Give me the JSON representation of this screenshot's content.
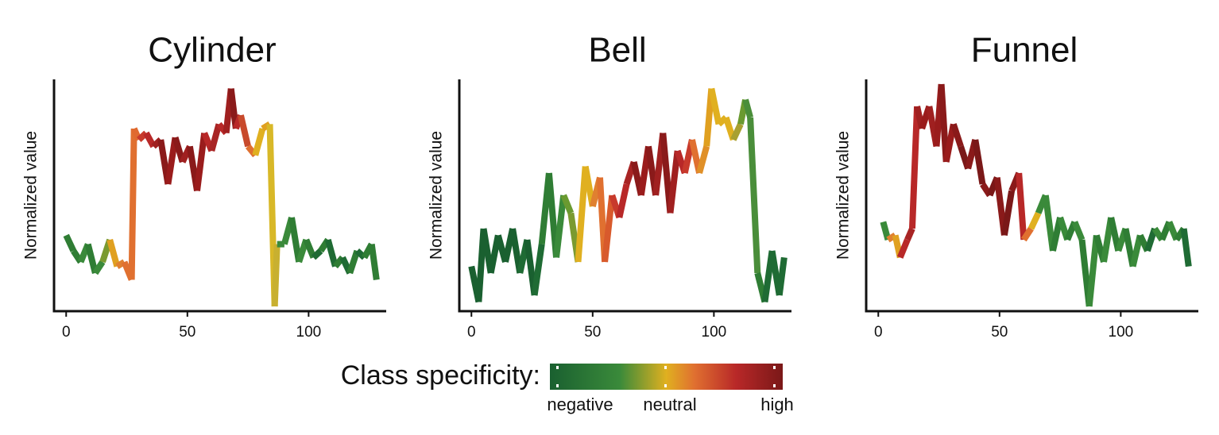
{
  "chart_data": [
    {
      "type": "line",
      "title": "Cylinder",
      "ylabel": "Normalized value",
      "xlim": [
        -5,
        132
      ],
      "ylim": [
        0,
        1
      ],
      "xticks": [
        0,
        50,
        100
      ],
      "series": [
        {
          "x": [
            0,
            3,
            6,
            9,
            12,
            15,
            18,
            21,
            24,
            27,
            28,
            30,
            33,
            36,
            39,
            42,
            45,
            48,
            51,
            54,
            57,
            60,
            63,
            66,
            68,
            70,
            72,
            75,
            78,
            81,
            84,
            86,
            87,
            90,
            93,
            96,
            99,
            102,
            105,
            108,
            111,
            114,
            117,
            120,
            123,
            126,
            128
          ],
          "values": [
            0.32,
            0.25,
            0.2,
            0.28,
            0.15,
            0.2,
            0.3,
            0.18,
            0.2,
            0.12,
            0.8,
            0.75,
            0.78,
            0.72,
            0.75,
            0.55,
            0.76,
            0.65,
            0.72,
            0.52,
            0.78,
            0.7,
            0.82,
            0.78,
            0.98,
            0.8,
            0.86,
            0.72,
            0.68,
            0.8,
            0.82,
            0.0,
            0.28,
            0.28,
            0.4,
            0.2,
            0.3,
            0.22,
            0.25,
            0.3,
            0.18,
            0.22,
            0.15,
            0.25,
            0.22,
            0.28,
            0.12
          ],
          "colors": [
            "#2f7d34",
            "#2f7d34",
            "#3a8a3a",
            "#2f7d34",
            "#3a8a3a",
            "#7a9a30",
            "#e0a020",
            "#e08030",
            "#e07030",
            "#e07030",
            "#e06a30",
            "#c83a2c",
            "#b82828",
            "#a02020",
            "#8a1a1a",
            "#9a1c1c",
            "#8a1a1a",
            "#a02020",
            "#8a1a1a",
            "#9a1c1c",
            "#b82828",
            "#a82424",
            "#b82828",
            "#a02020",
            "#8a1a1a",
            "#b82828",
            "#c84a2c",
            "#e07030",
            "#e0b020",
            "#e0a020",
            "#d8b828",
            "#c8b030",
            "#3a8a3a",
            "#3a8a3a",
            "#2f7d34",
            "#3a8a3a",
            "#2f7d34",
            "#1f6b34",
            "#2f7d34",
            "#1f6b34",
            "#2f7d34",
            "#1f6b34",
            "#2f7d34",
            "#1f6b34",
            "#2f7d34",
            "#2f7d34",
            "#2f7d34"
          ]
        }
      ]
    },
    {
      "type": "line",
      "title": "Bell",
      "ylabel": "Normalized value",
      "xlim": [
        -5,
        132
      ],
      "ylim": [
        0,
        1
      ],
      "xticks": [
        0,
        50,
        100
      ],
      "series": [
        {
          "x": [
            0,
            3,
            5,
            8,
            11,
            14,
            17,
            20,
            23,
            26,
            29,
            32,
            35,
            38,
            41,
            44,
            47,
            50,
            53,
            55,
            58,
            61,
            64,
            67,
            70,
            73,
            76,
            79,
            82,
            85,
            88,
            91,
            94,
            97,
            99,
            102,
            105,
            108,
            111,
            113,
            115,
            118,
            121,
            124,
            127,
            129
          ],
          "values": [
            0.18,
            0.02,
            0.35,
            0.15,
            0.32,
            0.2,
            0.35,
            0.15,
            0.3,
            0.05,
            0.28,
            0.6,
            0.22,
            0.5,
            0.42,
            0.2,
            0.63,
            0.45,
            0.58,
            0.2,
            0.5,
            0.4,
            0.55,
            0.65,
            0.5,
            0.72,
            0.5,
            0.78,
            0.42,
            0.7,
            0.6,
            0.75,
            0.6,
            0.72,
            0.98,
            0.82,
            0.85,
            0.75,
            0.82,
            0.93,
            0.85,
            0.15,
            0.02,
            0.25,
            0.05,
            0.22
          ],
          "colors": [
            "#1a6030",
            "#1a6030",
            "#1a6030",
            "#1a6030",
            "#1a6030",
            "#1a6030",
            "#1a6030",
            "#1f6b34",
            "#1a6030",
            "#1f6b34",
            "#2f7d34",
            "#2f7d34",
            "#3a8a3a",
            "#6a9a30",
            "#7a9a30",
            "#e0b020",
            "#e0b020",
            "#e08030",
            "#e07030",
            "#d85a2c",
            "#c83a2c",
            "#b82828",
            "#a82424",
            "#8a1a1a",
            "#9a1c1c",
            "#8a1a1a",
            "#a02020",
            "#8a1a1a",
            "#a02020",
            "#b82828",
            "#c83a2c",
            "#e07030",
            "#e09028",
            "#e0a020",
            "#e0b020",
            "#e0b020",
            "#e0b020",
            "#a8a030",
            "#6a9a30",
            "#4a8e3a",
            "#4a8e3a",
            "#2f7d34",
            "#1f6b34",
            "#1f6b34",
            "#1f6b34",
            "#1f6b34"
          ]
        }
      ]
    },
    {
      "type": "line",
      "title": "Funnel",
      "ylabel": "Normalized value",
      "xlim": [
        -5,
        132
      ],
      "ylim": [
        0,
        1
      ],
      "xticks": [
        0,
        50,
        100
      ],
      "series": [
        {
          "x": [
            2,
            4,
            7,
            9,
            12,
            14,
            16,
            18,
            21,
            24,
            26,
            28,
            31,
            34,
            37,
            40,
            43,
            46,
            49,
            52,
            55,
            58,
            60,
            63,
            66,
            69,
            72,
            75,
            78,
            81,
            84,
            87,
            90,
            93,
            96,
            99,
            102,
            105,
            108,
            111,
            114,
            117,
            120,
            123,
            126,
            128
          ],
          "values": [
            0.38,
            0.3,
            0.32,
            0.22,
            0.3,
            0.35,
            0.9,
            0.8,
            0.9,
            0.72,
            1.0,
            0.65,
            0.82,
            0.72,
            0.62,
            0.75,
            0.55,
            0.5,
            0.58,
            0.32,
            0.52,
            0.6,
            0.3,
            0.35,
            0.42,
            0.5,
            0.25,
            0.4,
            0.3,
            0.38,
            0.3,
            0.0,
            0.32,
            0.2,
            0.4,
            0.25,
            0.35,
            0.18,
            0.32,
            0.25,
            0.35,
            0.3,
            0.38,
            0.3,
            0.35,
            0.18
          ],
          "colors": [
            "#3a8a3a",
            "#e08030",
            "#e0a020",
            "#b82828",
            "#a82424",
            "#b82828",
            "#a02020",
            "#9a1c1c",
            "#a02020",
            "#9a1c1c",
            "#8a1a1a",
            "#9a1c1c",
            "#8a1a1a",
            "#7a1818",
            "#8a1a1a",
            "#7a1818",
            "#8a1a1a",
            "#7a1818",
            "#8a1a1a",
            "#7a1818",
            "#8a1a1a",
            "#b82828",
            "#e07030",
            "#e0b020",
            "#3a8a3a",
            "#3a8a3a",
            "#2f7d34",
            "#3a8a3a",
            "#2f7d34",
            "#3a8a3a",
            "#2f7d34",
            "#3a8a3a",
            "#2f7d34",
            "#3a8a3a",
            "#2f7d34",
            "#3a8a3a",
            "#2f7d34",
            "#3a8a3a",
            "#2f7d34",
            "#1f6b34",
            "#3a8a3a",
            "#2f7d34",
            "#3a8a3a",
            "#2f7d34",
            "#1f6b34",
            "#1f6b34"
          ]
        }
      ]
    }
  ],
  "legend": {
    "title": "Class specificity:",
    "labels": [
      "negative",
      "neutral",
      "high"
    ]
  }
}
